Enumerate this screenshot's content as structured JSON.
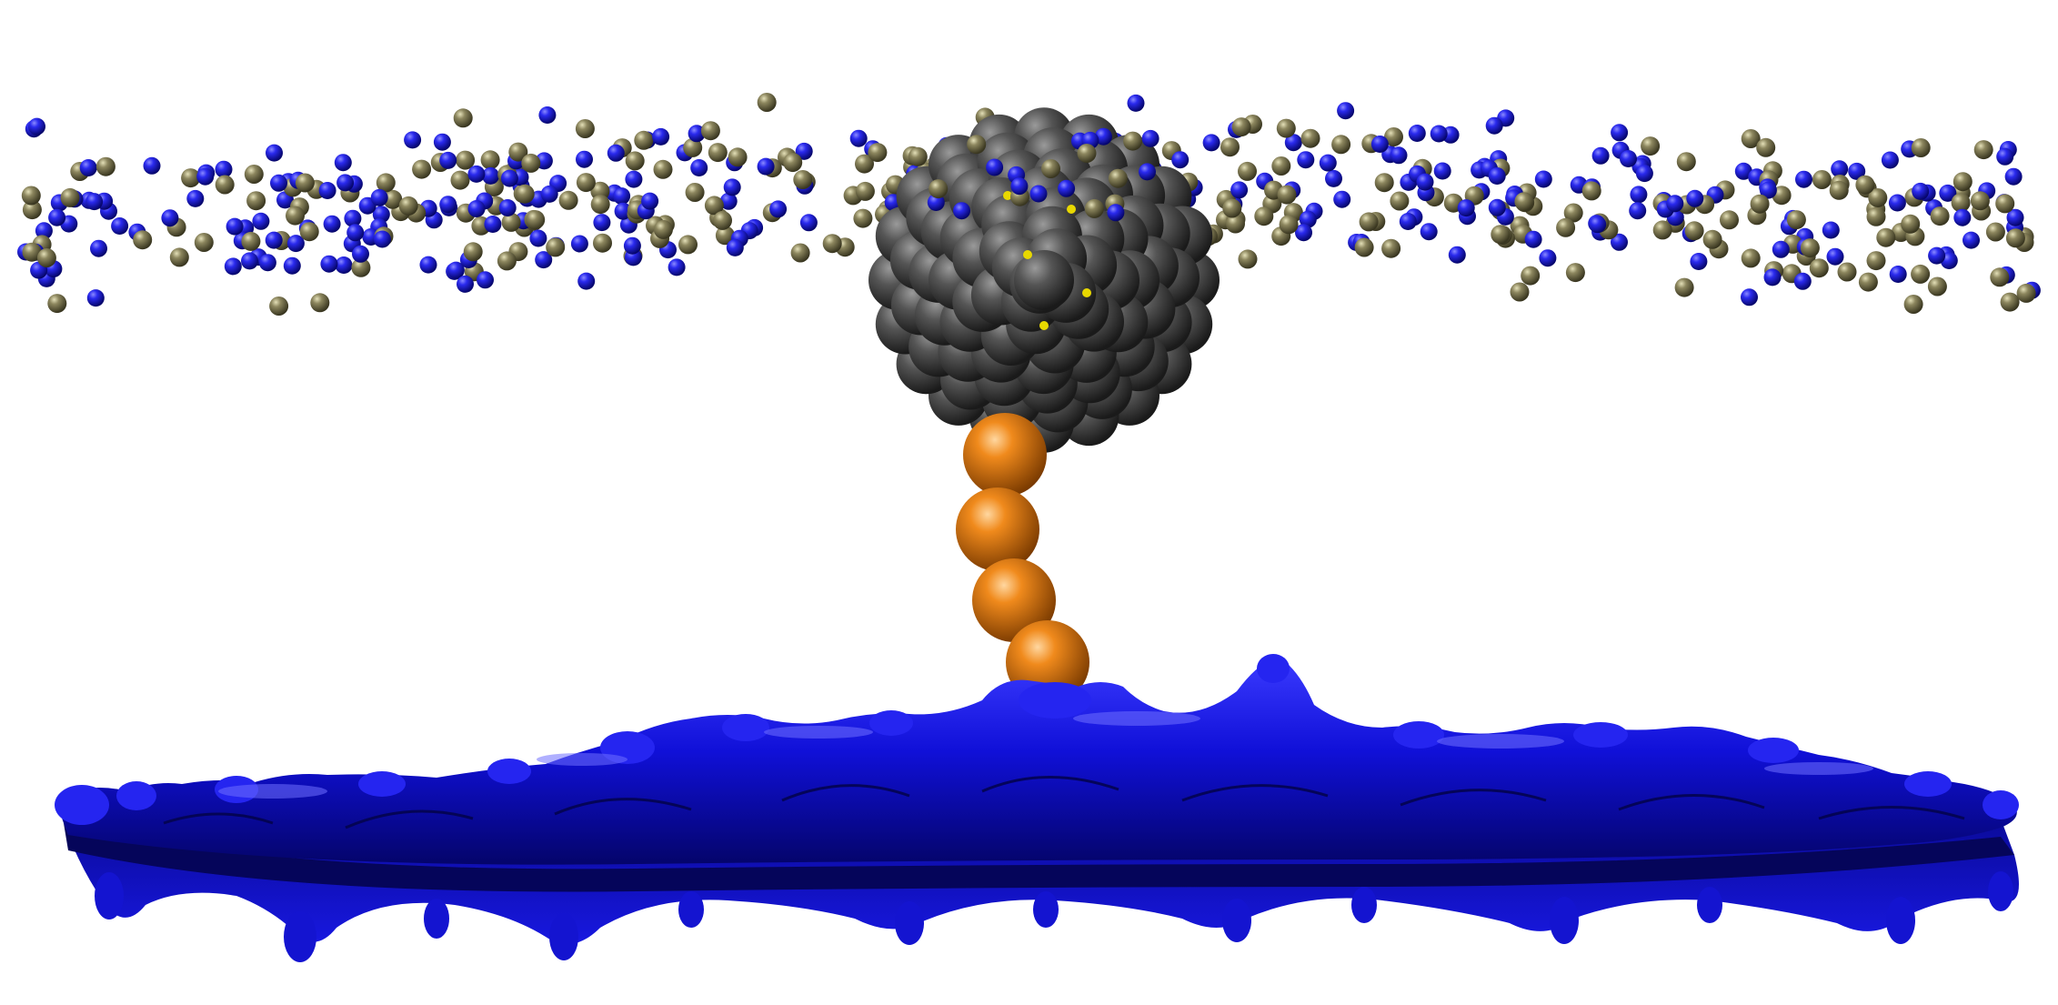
{
  "scene": {
    "background": "#ffffff",
    "colors": {
      "blue_atom": "#1414d8",
      "olive_atom": "#807a55",
      "cluster_atom": "#4a4a4a",
      "chain_bead": "#e07810",
      "surface": "#1010cc",
      "inner_highlight": "#e8d800"
    },
    "components": [
      "upper-particle-layer",
      "spherical-cluster",
      "bead-chain",
      "substrate-surface"
    ]
  }
}
